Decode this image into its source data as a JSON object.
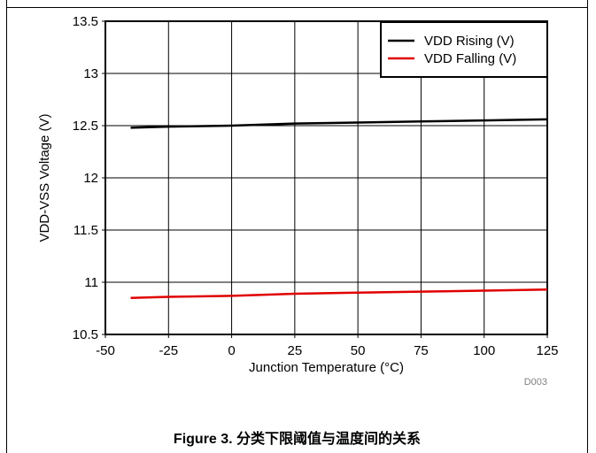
{
  "chart_data": {
    "type": "line",
    "xlabel": "Junction Temperature (°C)",
    "ylabel": "VDD-VSS Voltage (V)",
    "xlim": [
      -50,
      125
    ],
    "ylim": [
      10.5,
      13.5
    ],
    "xticks": [
      -50,
      -25,
      0,
      25,
      50,
      75,
      100,
      125
    ],
    "yticks": [
      10.5,
      11,
      11.5,
      12,
      12.5,
      13,
      13.5
    ],
    "xtick_labels": [
      "-50",
      "-25",
      "0",
      "25",
      "50",
      "75",
      "100",
      "125"
    ],
    "ytick_labels": [
      "10.5",
      "11",
      "11.5",
      "12",
      "12.5",
      "13",
      "13.5"
    ],
    "grid": true,
    "legend_position": "top-right",
    "series": [
      {
        "name": "VDD Rising (V)",
        "color": "#000000",
        "x": [
          -40,
          -25,
          0,
          25,
          50,
          75,
          100,
          125
        ],
        "y": [
          12.48,
          12.49,
          12.5,
          12.52,
          12.53,
          12.54,
          12.55,
          12.56
        ]
      },
      {
        "name": "VDD Falling (V)",
        "color": "#e00000",
        "x": [
          -40,
          -25,
          0,
          25,
          50,
          75,
          100,
          125
        ],
        "y": [
          10.85,
          10.86,
          10.87,
          10.89,
          10.9,
          10.91,
          10.92,
          10.93
        ]
      }
    ],
    "code": "D003"
  },
  "caption": "Figure 3. 分类下限阈值与温度间的关系"
}
